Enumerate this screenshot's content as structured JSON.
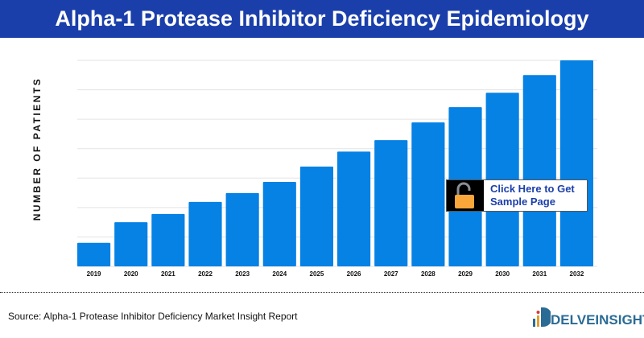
{
  "header": {
    "title": "Alpha-1 Protease Inhibitor Deficiency Epidemiology"
  },
  "chart_data": {
    "type": "bar",
    "title": "Alpha-1 Protease Inhibitor Deficiency Epidemiology",
    "xlabel": "",
    "ylabel": "NUMBER OF PATIENTS",
    "categories": [
      "2019",
      "2020",
      "2021",
      "2022",
      "2023",
      "2024",
      "2025",
      "2026",
      "2027",
      "2028",
      "2029",
      "2030",
      "2031",
      "2032"
    ],
    "values": [
      0.8,
      1.5,
      1.78,
      2.19,
      2.49,
      2.87,
      3.39,
      3.9,
      4.29,
      4.89,
      5.41,
      5.9,
      6.5,
      7.0
    ],
    "ylim": [
      0,
      7
    ],
    "y_ticks_labeled": false,
    "grid": true,
    "bar_color": "#0681e4"
  },
  "cta": {
    "line1": "Click Here to Get",
    "line2": "Sample Page",
    "icon": "unlocked-padlock-icon",
    "icon_color": "#f9a73a"
  },
  "footer": {
    "source": "Source: Alpha-1 Protease Inhibitor Deficiency Market Insight Report",
    "logo": "DELVEINSIGHT"
  },
  "colors": {
    "header_bg": "#1b3faa",
    "bar": "#0681e4",
    "grid": "#e3e3e3"
  }
}
